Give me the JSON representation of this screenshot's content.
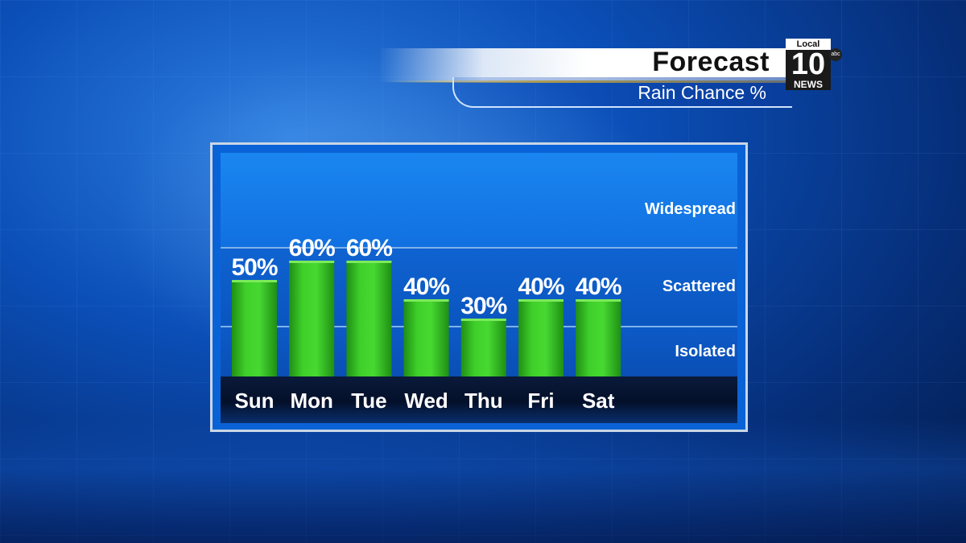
{
  "header": {
    "title": "Forecast",
    "subtitle": "Rain Chance %"
  },
  "logo": {
    "top": "Local",
    "number": "10",
    "bottom": "NEWS",
    "network": "abc"
  },
  "zones": {
    "widespread": "Widespread",
    "scattered": "Scattered",
    "isolated": "Isolated"
  },
  "colors": {
    "bar": "#3fcf2a",
    "bar_dark": "#1f8f14",
    "label": "#ffffff"
  },
  "chart_data": {
    "type": "bar",
    "title": "Rain Chance %",
    "categories": [
      "Sun",
      "Mon",
      "Tue",
      "Wed",
      "Thu",
      "Fri",
      "Sat"
    ],
    "values": [
      50,
      60,
      60,
      40,
      30,
      40,
      40
    ],
    "value_labels": [
      "50%",
      "60%",
      "60%",
      "40%",
      "30%",
      "40%",
      "40%"
    ],
    "ylim": [
      0,
      100
    ],
    "grid": false
  }
}
